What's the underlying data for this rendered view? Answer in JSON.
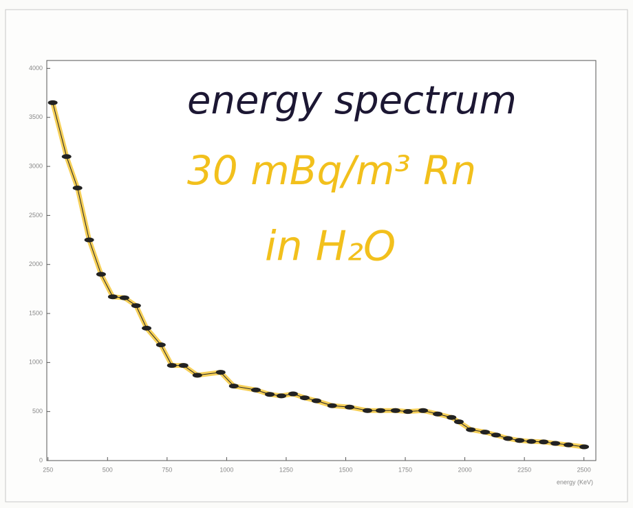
{
  "chart_data": {
    "type": "line",
    "annotations": [
      "energy spectrum",
      "30 mBq/m³ Rn",
      "in H₂O"
    ],
    "annotation_colors": [
      "#1c1733",
      "#f2c01c",
      "#f2c01c"
    ],
    "x_label": "energy (KeV)",
    "series": [
      {
        "color": "#222222",
        "highlight_color": "#f4c430",
        "x": [
          270,
          328,
          374,
          423,
          473,
          522,
          571,
          620,
          664,
          724,
          770,
          819,
          877,
          975,
          1030,
          1123,
          1181,
          1230,
          1279,
          1328,
          1377,
          1443,
          1516,
          1591,
          1646,
          1709,
          1761,
          1825,
          1886,
          1944,
          1975,
          2025,
          2085,
          2131,
          2181,
          2230,
          2279,
          2331,
          2380,
          2435,
          2501
        ],
        "values": [
          3650,
          3100,
          2780,
          2250,
          1900,
          1670,
          1660,
          1580,
          1350,
          1180,
          970,
          970,
          870,
          900,
          760,
          720,
          675,
          660,
          680,
          640,
          610,
          560,
          545,
          510,
          510,
          510,
          500,
          510,
          475,
          440,
          395,
          315,
          290,
          260,
          225,
          205,
          195,
          190,
          175,
          160,
          140
        ]
      }
    ],
    "xlim": [
      245,
      2550
    ],
    "ylim": [
      0,
      4080
    ],
    "xticks": [
      250,
      500,
      750,
      1000,
      1250,
      1500,
      1750,
      2000,
      2250,
      2500
    ],
    "yticks": [
      0,
      500,
      1000,
      1500,
      2000,
      2500,
      3000,
      3500,
      4000
    ]
  }
}
